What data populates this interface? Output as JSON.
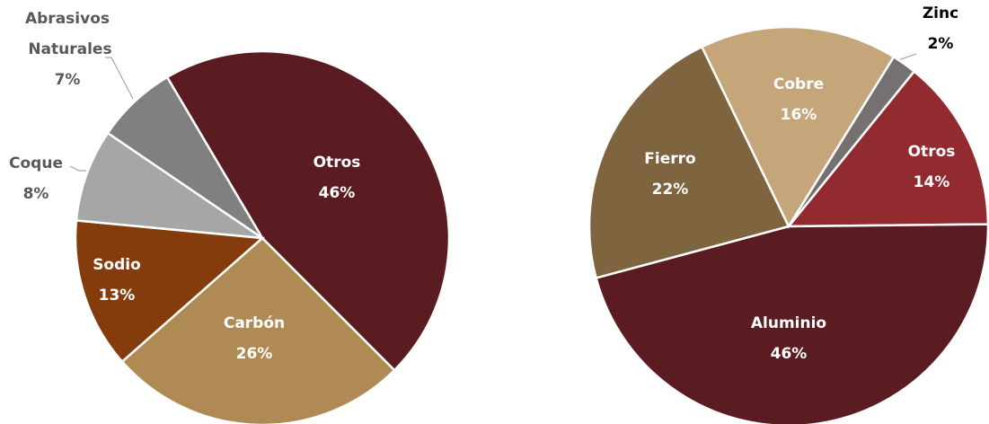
{
  "chart_data": [
    {
      "type": "pie",
      "categories": [
        "Otros",
        "Carbón",
        "Sodio",
        "Coque",
        "Abrasivos Naturales"
      ],
      "values": [
        46,
        26,
        13,
        8,
        7
      ],
      "value_labels": [
        "46%",
        "26%",
        "13%",
        "8%",
        "7%"
      ],
      "colors": [
        "#5a1c20",
        "#b08a55",
        "#843c0c",
        "#a6a6a6",
        "#808080"
      ]
    },
    {
      "type": "pie",
      "categories": [
        "Otros",
        "Aluminio",
        "Fierro",
        "Cobre",
        "Zinc"
      ],
      "values": [
        14,
        46,
        22,
        16,
        2
      ],
      "value_labels": [
        "14%",
        "46%",
        "22%",
        "16%",
        "2%"
      ],
      "colors": [
        "#922b30",
        "#5a1c20",
        "#7f6440",
        "#c4a67a",
        "#767171"
      ]
    }
  ]
}
